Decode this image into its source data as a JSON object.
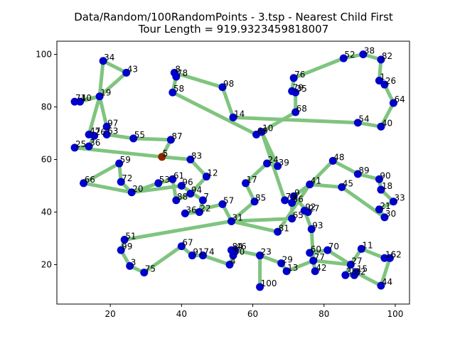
{
  "chart_data": {
    "type": "scatter",
    "title": "Data/Random/100RandomPoints - 3.tsp - Nearest Child First",
    "subtitle": "Tour Length = 919.9323459818007",
    "xlabel": "",
    "ylabel": "",
    "xlim": [
      5,
      104
    ],
    "ylim": [
      5,
      105
    ],
    "xticks": [
      20,
      40,
      60,
      80,
      100
    ],
    "yticks": [
      20,
      40,
      60,
      80,
      100
    ],
    "grid": false,
    "colors": {
      "point": "#0000cc",
      "start": "#8b2500",
      "tour": "#7fc47f"
    },
    "start_node": "5",
    "points": [
      {
        "id": "34",
        "x": 18,
        "y": 97.5
      },
      {
        "id": "43",
        "x": 24.5,
        "y": 93
      },
      {
        "id": "19",
        "x": 17,
        "y": 84
      },
      {
        "id": "71",
        "x": 10,
        "y": 82
      },
      {
        "id": "40",
        "x": 11.5,
        "y": 82
      },
      {
        "id": "97",
        "x": 19,
        "y": 72.5
      },
      {
        "id": "47",
        "x": 14,
        "y": 69.5
      },
      {
        "id": "26",
        "x": 15.5,
        "y": 69
      },
      {
        "id": "63",
        "x": 19,
        "y": 69.5
      },
      {
        "id": "25",
        "x": 10,
        "y": 64.5
      },
      {
        "id": "36",
        "x": 14,
        "y": 65
      },
      {
        "id": "55",
        "x": 26.5,
        "y": 68
      },
      {
        "id": "87",
        "x": 37,
        "y": 67.5
      },
      {
        "id": "5",
        "x": 34.5,
        "y": 61
      },
      {
        "id": "83",
        "x": 42.5,
        "y": 60
      },
      {
        "id": "12",
        "x": 47,
        "y": 53.5
      },
      {
        "id": "59",
        "x": 22.5,
        "y": 58.5
      },
      {
        "id": "72",
        "x": 23,
        "y": 51.5
      },
      {
        "id": "20",
        "x": 26,
        "y": 47.5
      },
      {
        "id": "66",
        "x": 12.5,
        "y": 51
      },
      {
        "id": "53",
        "x": 33.5,
        "y": 51
      },
      {
        "id": "61",
        "x": 37.5,
        "y": 52.5
      },
      {
        "id": "96",
        "x": 40,
        "y": 50
      },
      {
        "id": "94",
        "x": 42.5,
        "y": 47
      },
      {
        "id": "88",
        "x": 38.5,
        "y": 44.5
      },
      {
        "id": "7",
        "x": 46,
        "y": 44.5
      },
      {
        "id": "36b",
        "x": 41,
        "y": 39.5
      },
      {
        "id": "22",
        "x": 45,
        "y": 40
      },
      {
        "id": "57",
        "x": 51.5,
        "y": 43
      },
      {
        "id": "31",
        "x": 54,
        "y": 36.5
      },
      {
        "id": "81",
        "x": 67,
        "y": 32.5
      },
      {
        "id": "17",
        "x": 58,
        "y": 51
      },
      {
        "id": "85",
        "x": 60.5,
        "y": 44
      },
      {
        "id": "24",
        "x": 64,
        "y": 58.5
      },
      {
        "id": "39",
        "x": 67,
        "y": 57.5
      },
      {
        "id": "69",
        "x": 61,
        "y": 69.5
      },
      {
        "id": "10",
        "x": 62.5,
        "y": 70.5
      },
      {
        "id": "14",
        "x": 54.5,
        "y": 76
      },
      {
        "id": "98",
        "x": 51.5,
        "y": 87.5
      },
      {
        "id": "8",
        "x": 38,
        "y": 93
      },
      {
        "id": "78",
        "x": 38.5,
        "y": 91.5
      },
      {
        "id": "58",
        "x": 37.5,
        "y": 85.5
      },
      {
        "id": "76",
        "x": 71.5,
        "y": 91
      },
      {
        "id": "79",
        "x": 71,
        "y": 86
      },
      {
        "id": "35",
        "x": 72,
        "y": 85.5
      },
      {
        "id": "68",
        "x": 72,
        "y": 78
      },
      {
        "id": "54",
        "x": 89.5,
        "y": 74
      },
      {
        "id": "40b",
        "x": 96,
        "y": 72.5
      },
      {
        "id": "64",
        "x": 99.5,
        "y": 81.5
      },
      {
        "id": "26b",
        "x": 97,
        "y": 88.5
      },
      {
        "id": "1",
        "x": 95.5,
        "y": 90
      },
      {
        "id": "82",
        "x": 96,
        "y": 98
      },
      {
        "id": "38",
        "x": 91,
        "y": 100
      },
      {
        "id": "52",
        "x": 85.5,
        "y": 98.5
      },
      {
        "id": "48",
        "x": 82.5,
        "y": 59.5
      },
      {
        "id": "89",
        "x": 89.5,
        "y": 54.5
      },
      {
        "id": "90",
        "x": 95.5,
        "y": 52.5
      },
      {
        "id": "18",
        "x": 96,
        "y": 48.5
      },
      {
        "id": "33",
        "x": 99.5,
        "y": 44
      },
      {
        "id": "21",
        "x": 95.5,
        "y": 41
      },
      {
        "id": "30",
        "x": 97,
        "y": 38
      },
      {
        "id": "45",
        "x": 85,
        "y": 49.5
      },
      {
        "id": "41",
        "x": 76,
        "y": 50.5
      },
      {
        "id": "9",
        "x": 71.5,
        "y": 46
      },
      {
        "id": "75",
        "x": 69,
        "y": 44.5
      },
      {
        "id": "56",
        "x": 71,
        "y": 43.5
      },
      {
        "id": "92",
        "x": 74.5,
        "y": 40.5
      },
      {
        "id": "27",
        "x": 75.5,
        "y": 40
      },
      {
        "id": "65",
        "x": 71,
        "y": 37.5
      },
      {
        "id": "93",
        "x": 76.5,
        "y": 33.5
      },
      {
        "id": "60",
        "x": 76,
        "y": 24.5
      },
      {
        "id": "70",
        "x": 81,
        "y": 25.5
      },
      {
        "id": "77",
        "x": 77,
        "y": 21.5
      },
      {
        "id": "42",
        "x": 77.5,
        "y": 17.5
      },
      {
        "id": "29",
        "x": 68,
        "y": 20.5
      },
      {
        "id": "13",
        "x": 69.5,
        "y": 17.5
      },
      {
        "id": "23",
        "x": 62,
        "y": 23.5
      },
      {
        "id": "100",
        "x": 62,
        "y": 11.5
      },
      {
        "id": "84",
        "x": 54,
        "y": 25.5
      },
      {
        "id": "46",
        "x": 55,
        "y": 25.5
      },
      {
        "id": "50",
        "x": 54.5,
        "y": 23.5
      },
      {
        "id": "4",
        "x": 53.5,
        "y": 20
      },
      {
        "id": "74",
        "x": 46,
        "y": 23.5
      },
      {
        "id": "91",
        "x": 43,
        "y": 23.5
      },
      {
        "id": "67",
        "x": 40,
        "y": 27
      },
      {
        "id": "75b",
        "x": 29.5,
        "y": 17
      },
      {
        "id": "3",
        "x": 25.5,
        "y": 19.5
      },
      {
        "id": "99",
        "x": 23,
        "y": 25.5
      },
      {
        "id": "51",
        "x": 24,
        "y": 29.5
      },
      {
        "id": "27b",
        "x": 87.5,
        "y": 20
      },
      {
        "id": "11",
        "x": 90.5,
        "y": 26
      },
      {
        "id": "16",
        "x": 97,
        "y": 22.5
      },
      {
        "id": "62",
        "x": 98.5,
        "y": 22.5
      },
      {
        "id": "35b",
        "x": 86,
        "y": 16
      },
      {
        "id": "15",
        "x": 89,
        "y": 17
      },
      {
        "id": "32",
        "x": 88.5,
        "y": 16
      },
      {
        "id": "44",
        "x": 96,
        "y": 12
      }
    ],
    "tour": [
      "5",
      "87",
      "55",
      "63",
      "97",
      "19",
      "34",
      "43",
      "19",
      "40",
      "71",
      "19",
      "47",
      "26",
      "36",
      "25",
      "5",
      "83",
      "12",
      "94",
      "88",
      "61",
      "53",
      "20",
      "66",
      "59",
      "72",
      "20",
      "96",
      "7",
      "22",
      "36b",
      "57",
      "31",
      "85",
      "17",
      "24",
      "39",
      "10",
      "69",
      "58",
      "78",
      "8",
      "98",
      "14",
      "54",
      "40b",
      "64",
      "26b",
      "1",
      "82",
      "38",
      "52",
      "76",
      "79",
      "35",
      "68",
      "10",
      "75",
      "56",
      "65",
      "31",
      "51",
      "99",
      "3",
      "75b",
      "67",
      "91",
      "74",
      "4",
      "50",
      "84",
      "46",
      "23",
      "100",
      "23",
      "29",
      "13",
      "77",
      "60",
      "70",
      "27b",
      "11",
      "16",
      "62",
      "44",
      "15",
      "32",
      "35b",
      "27b",
      "77",
      "42",
      "77",
      "93",
      "92",
      "27",
      "9",
      "41",
      "48",
      "89",
      "90",
      "18",
      "33",
      "21",
      "30",
      "45",
      "41",
      "81",
      "31"
    ],
    "labels": [
      {
        "text": "34",
        "x": 18,
        "y": 97.5
      },
      {
        "text": "43",
        "x": 24.5,
        "y": 93
      },
      {
        "text": "19",
        "x": 17,
        "y": 84
      },
      {
        "text": "71",
        "x": 10,
        "y": 82
      },
      {
        "text": "40",
        "x": 11.5,
        "y": 82
      },
      {
        "text": "97",
        "x": 19,
        "y": 72.5
      },
      {
        "text": "47",
        "x": 14,
        "y": 69.5
      },
      {
        "text": "26",
        "x": 15.5,
        "y": 69
      },
      {
        "text": "63",
        "x": 19,
        "y": 69.5
      },
      {
        "text": "25",
        "x": 10,
        "y": 64.5
      },
      {
        "text": "36",
        "x": 14,
        "y": 65
      },
      {
        "text": "55",
        "x": 26.5,
        "y": 68
      },
      {
        "text": "87",
        "x": 37,
        "y": 67.5
      },
      {
        "text": "5",
        "x": 34.5,
        "y": 61
      },
      {
        "text": "83",
        "x": 42.5,
        "y": 60
      },
      {
        "text": "12",
        "x": 47,
        "y": 53.5
      },
      {
        "text": "59",
        "x": 22.5,
        "y": 58.5
      },
      {
        "text": "72",
        "x": 23,
        "y": 51.5
      },
      {
        "text": "20",
        "x": 26,
        "y": 47.5
      },
      {
        "text": "66",
        "x": 12.5,
        "y": 51
      },
      {
        "text": "53",
        "x": 33.5,
        "y": 51
      },
      {
        "text": "61",
        "x": 37.5,
        "y": 52.5
      },
      {
        "text": "96",
        "x": 40,
        "y": 50
      },
      {
        "text": "94",
        "x": 42.5,
        "y": 47
      },
      {
        "text": "88",
        "x": 38.5,
        "y": 44.5
      },
      {
        "text": "7",
        "x": 46,
        "y": 44.5
      },
      {
        "text": "36",
        "x": 41,
        "y": 39.5
      },
      {
        "text": "22",
        "x": 45,
        "y": 40
      },
      {
        "text": "57",
        "x": 51.5,
        "y": 43
      },
      {
        "text": "31",
        "x": 54,
        "y": 36.5
      },
      {
        "text": "81",
        "x": 67,
        "y": 32.5
      },
      {
        "text": "17",
        "x": 58,
        "y": 51
      },
      {
        "text": "85",
        "x": 60.5,
        "y": 44
      },
      {
        "text": "24",
        "x": 64,
        "y": 58.5
      },
      {
        "text": "39",
        "x": 67,
        "y": 57.5
      },
      {
        "text": "69",
        "x": 61,
        "y": 69.5
      },
      {
        "text": "10",
        "x": 62.5,
        "y": 70.5
      },
      {
        "text": "14",
        "x": 54.5,
        "y": 76
      },
      {
        "text": "98",
        "x": 51.5,
        "y": 87.5
      },
      {
        "text": "8",
        "x": 38,
        "y": 93
      },
      {
        "text": "78",
        "x": 38.5,
        "y": 91.5
      },
      {
        "text": "58",
        "x": 37.5,
        "y": 85.5
      },
      {
        "text": "76",
        "x": 71.5,
        "y": 91
      },
      {
        "text": "79",
        "x": 71,
        "y": 86
      },
      {
        "text": "35",
        "x": 72,
        "y": 85.5
      },
      {
        "text": "68",
        "x": 72,
        "y": 78
      },
      {
        "text": "54",
        "x": 89.5,
        "y": 74
      },
      {
        "text": "40",
        "x": 96,
        "y": 72.5
      },
      {
        "text": "64",
        "x": 99.5,
        "y": 81.5
      },
      {
        "text": "26",
        "x": 97,
        "y": 88.5
      },
      {
        "text": "1",
        "x": 95.5,
        "y": 90
      },
      {
        "text": "82",
        "x": 96,
        "y": 98
      },
      {
        "text": "38",
        "x": 91,
        "y": 100
      },
      {
        "text": "52",
        "x": 85.5,
        "y": 98.5
      },
      {
        "text": "48",
        "x": 82.5,
        "y": 59.5
      },
      {
        "text": "89",
        "x": 89.5,
        "y": 54.5
      },
      {
        "text": "90",
        "x": 95.5,
        "y": 52.5
      },
      {
        "text": "18",
        "x": 96,
        "y": 48.5
      },
      {
        "text": "33",
        "x": 99.5,
        "y": 44
      },
      {
        "text": "21",
        "x": 95.5,
        "y": 41
      },
      {
        "text": "30",
        "x": 97,
        "y": 38
      },
      {
        "text": "45",
        "x": 85,
        "y": 49.5
      },
      {
        "text": "41",
        "x": 76,
        "y": 50.5
      },
      {
        "text": "9",
        "x": 71.5,
        "y": 46
      },
      {
        "text": "75",
        "x": 69,
        "y": 44.5
      },
      {
        "text": "56",
        "x": 71,
        "y": 43.5
      },
      {
        "text": "92",
        "x": 74.5,
        "y": 40.5
      },
      {
        "text": "27",
        "x": 75.5,
        "y": 40
      },
      {
        "text": "65",
        "x": 71,
        "y": 37.5
      },
      {
        "text": "93",
        "x": 76.5,
        "y": 33.5
      },
      {
        "text": "60",
        "x": 76,
        "y": 24.5
      },
      {
        "text": "70",
        "x": 81,
        "y": 25.5
      },
      {
        "text": "77",
        "x": 77,
        "y": 21.5
      },
      {
        "text": "42",
        "x": 77.5,
        "y": 17.5
      },
      {
        "text": "29",
        "x": 68,
        "y": 20.5
      },
      {
        "text": "13",
        "x": 69.5,
        "y": 17.5
      },
      {
        "text": "23",
        "x": 62,
        "y": 23.5
      },
      {
        "text": "100",
        "x": 62,
        "y": 11.5
      },
      {
        "text": "84",
        "x": 54,
        "y": 25.5
      },
      {
        "text": "46",
        "x": 55,
        "y": 25.5
      },
      {
        "text": "50",
        "x": 54.5,
        "y": 23.5
      },
      {
        "text": "4",
        "x": 53.5,
        "y": 20
      },
      {
        "text": "74",
        "x": 46,
        "y": 23.5
      },
      {
        "text": "91",
        "x": 43,
        "y": 23.5
      },
      {
        "text": "67",
        "x": 40,
        "y": 27
      },
      {
        "text": "75",
        "x": 29.5,
        "y": 17
      },
      {
        "text": "3",
        "x": 25.5,
        "y": 19.5
      },
      {
        "text": "99",
        "x": 23,
        "y": 25.5
      },
      {
        "text": "51",
        "x": 24,
        "y": 29.5
      },
      {
        "text": "27",
        "x": 87.5,
        "y": 20
      },
      {
        "text": "11",
        "x": 90.5,
        "y": 26
      },
      {
        "text": "16",
        "x": 97,
        "y": 22.5
      },
      {
        "text": "62",
        "x": 98.5,
        "y": 22.5
      },
      {
        "text": "35",
        "x": 86,
        "y": 16
      },
      {
        "text": "15",
        "x": 89,
        "y": 17
      },
      {
        "text": "32",
        "x": 88.5,
        "y": 16
      },
      {
        "text": "44",
        "x": 96,
        "y": 12
      }
    ]
  }
}
